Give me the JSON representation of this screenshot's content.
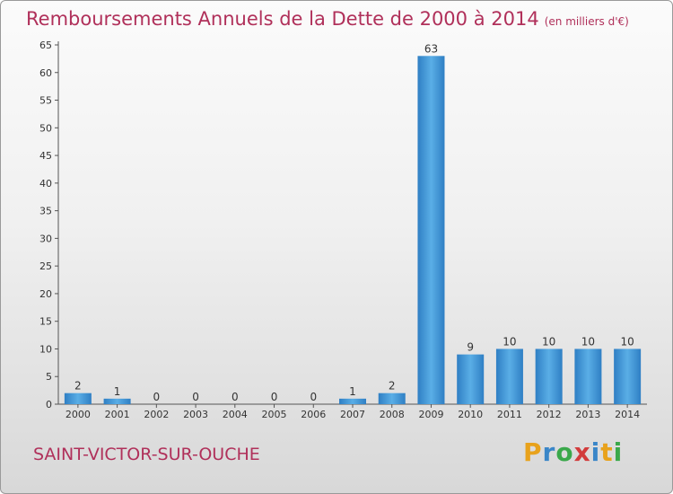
{
  "title": "Remboursements Annuels de la Dette de 2000 à 2014",
  "subtitle": "(en milliers d'€)",
  "commune": "SAINT-VICTOR-SUR-OUCHE",
  "brand": {
    "letters": [
      "P",
      "r",
      "o",
      "x",
      "i",
      "t",
      "i"
    ],
    "colors": [
      "#e8a21c",
      "#3a86c8",
      "#3aa84a",
      "#d23c3c",
      "#3a86c8",
      "#e8a21c",
      "#3aa84a"
    ]
  },
  "chart_data": {
    "type": "bar",
    "title": "Remboursements Annuels de la Dette de 2000 à 2014",
    "xlabel": "",
    "ylabel": "",
    "categories": [
      "2000",
      "2001",
      "2002",
      "2003",
      "2004",
      "2005",
      "2006",
      "2007",
      "2008",
      "2009",
      "2010",
      "2011",
      "2012",
      "2013",
      "2014"
    ],
    "values": [
      2,
      1,
      0,
      0,
      0,
      0,
      0,
      1,
      2,
      63,
      9,
      10,
      10,
      10,
      10
    ],
    "ylim": [
      0,
      65
    ],
    "yticks": [
      0,
      5,
      10,
      15,
      20,
      25,
      30,
      35,
      40,
      45,
      50,
      55,
      60,
      65
    ],
    "grid": false,
    "bar_color": "#3a8fd8"
  }
}
